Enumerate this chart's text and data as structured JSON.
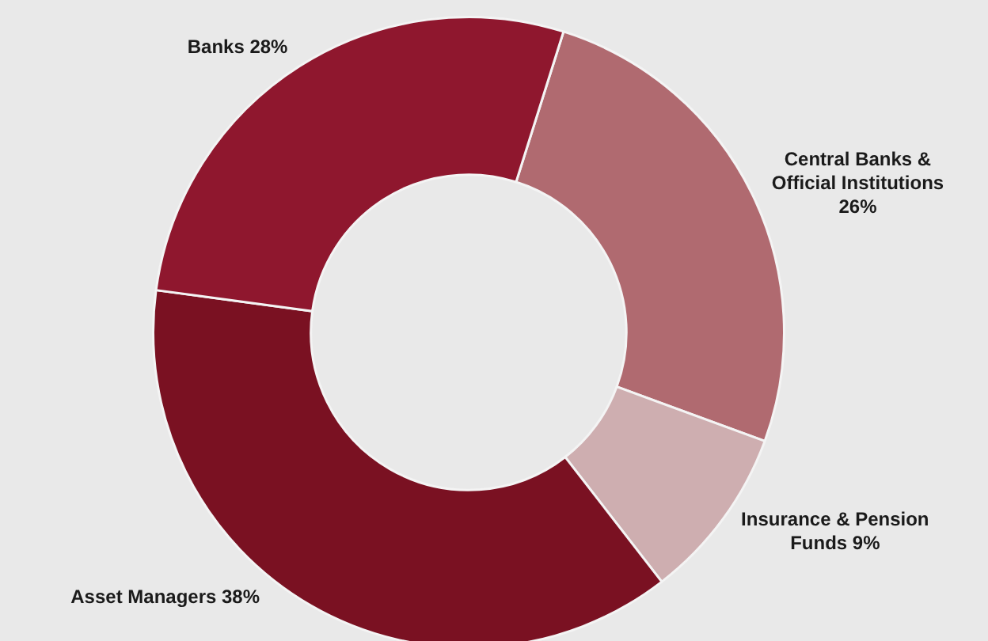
{
  "chart_data": {
    "type": "donut",
    "categories": [
      "Central Banks & Official Institutions",
      "Insurance & Pension Funds",
      "Asset Managers",
      "Banks"
    ],
    "values": [
      26,
      9,
      38,
      28
    ],
    "value_labels": [
      "26%",
      "9%",
      "38%",
      "28%"
    ],
    "colors": [
      "#b06a70",
      "#ceaeb0",
      "#7a1122",
      "#8f172e"
    ],
    "legend": false,
    "data_labels": true
  }
}
